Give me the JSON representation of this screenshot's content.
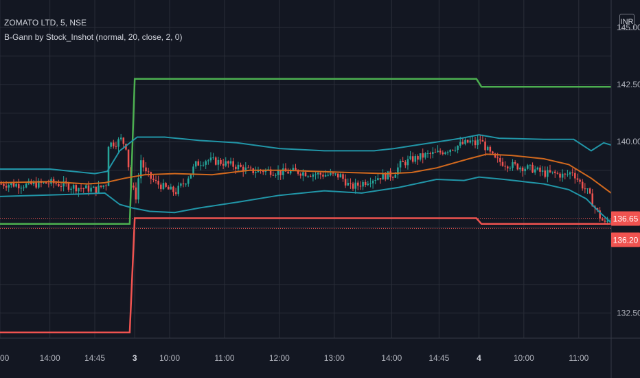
{
  "header": {
    "symbol": "ZOMATO LTD, 5, NSE",
    "indicator": "B-Gann by Stock_Inshot (normal, 20, close, 2, 0)",
    "currency": "INR"
  },
  "colors": {
    "background": "#131722",
    "grid": "#2a2e39",
    "axis_text": "#b2b5be",
    "candle_up": "#26a69a",
    "candle_down": "#ef5350",
    "upper_gann": "#4caf50",
    "lower_gann": "#f05350",
    "bollinger": "#2196a8",
    "ma": "#d2691e"
  },
  "chart_data": {
    "type": "line",
    "ylim": [
      131.4,
      146.2
    ],
    "y_ticks": [
      "132.50",
      "140.00",
      "142.50",
      "145.00"
    ],
    "x_ticks": [
      "00",
      "14:00",
      "14:45",
      "3",
      "10:00",
      "11:00",
      "12:00",
      "13:00",
      "14:00",
      "14:45",
      "4",
      "10:00",
      "11:00"
    ],
    "x_tick_bars": [
      0,
      20,
      38,
      54,
      68,
      90,
      112,
      134,
      157,
      176,
      192,
      210,
      232
    ],
    "n_bars": 245,
    "price_labels": [
      {
        "label": "136.65",
        "value": 136.65,
        "color": "#f05350"
      },
      {
        "label": "136.20",
        "value": 136.2,
        "color": "#f05350"
      }
    ],
    "series": [
      {
        "name": "upper-gann",
        "color": "#4caf50",
        "points": [
          [
            0,
            136.4
          ],
          [
            52,
            136.4
          ],
          [
            54,
            142.75
          ],
          [
            191,
            142.75
          ],
          [
            193,
            142.4
          ],
          [
            245,
            142.4
          ]
        ]
      },
      {
        "name": "lower-gann",
        "color": "#f05350",
        "points": [
          [
            0,
            131.65
          ],
          [
            52,
            131.65
          ],
          [
            54,
            136.65
          ],
          [
            191,
            136.65
          ],
          [
            193,
            136.4
          ],
          [
            245,
            136.4
          ]
        ]
      },
      {
        "name": "bollinger-upper",
        "color": "#2196a8",
        "points": [
          [
            0,
            138.8
          ],
          [
            20,
            138.8
          ],
          [
            38,
            138.6
          ],
          [
            43,
            138.7
          ],
          [
            48,
            139.6
          ],
          [
            55,
            140.2
          ],
          [
            66,
            140.2
          ],
          [
            80,
            140.05
          ],
          [
            95,
            139.95
          ],
          [
            112,
            139.7
          ],
          [
            130,
            139.6
          ],
          [
            150,
            139.6
          ],
          [
            158,
            139.7
          ],
          [
            170,
            139.9
          ],
          [
            185,
            140.15
          ],
          [
            192,
            140.3
          ],
          [
            200,
            140.15
          ],
          [
            218,
            140.1
          ],
          [
            230,
            140.1
          ],
          [
            237,
            139.6
          ],
          [
            242,
            139.95
          ],
          [
            245,
            139.85
          ]
        ]
      },
      {
        "name": "bollinger-lower",
        "color": "#2196a8",
        "points": [
          [
            0,
            137.6
          ],
          [
            15,
            137.65
          ],
          [
            30,
            137.7
          ],
          [
            42,
            137.75
          ],
          [
            48,
            137.25
          ],
          [
            53,
            137.1
          ],
          [
            60,
            136.95
          ],
          [
            70,
            136.9
          ],
          [
            80,
            137.1
          ],
          [
            95,
            137.35
          ],
          [
            112,
            137.65
          ],
          [
            130,
            137.85
          ],
          [
            145,
            137.75
          ],
          [
            160,
            138.0
          ],
          [
            175,
            138.35
          ],
          [
            186,
            138.3
          ],
          [
            192,
            138.45
          ],
          [
            202,
            138.35
          ],
          [
            218,
            138.15
          ],
          [
            228,
            137.9
          ],
          [
            235,
            137.5
          ],
          [
            240,
            136.95
          ],
          [
            245,
            136.45
          ]
        ]
      },
      {
        "name": "moving-average",
        "color": "#d2691e",
        "points": [
          [
            0,
            138.2
          ],
          [
            20,
            138.25
          ],
          [
            35,
            138.15
          ],
          [
            42,
            138.2
          ],
          [
            50,
            138.4
          ],
          [
            58,
            138.55
          ],
          [
            70,
            138.6
          ],
          [
            85,
            138.55
          ],
          [
            100,
            138.75
          ],
          [
            115,
            138.75
          ],
          [
            125,
            138.7
          ],
          [
            140,
            138.65
          ],
          [
            155,
            138.6
          ],
          [
            165,
            138.65
          ],
          [
            175,
            138.85
          ],
          [
            188,
            139.25
          ],
          [
            195,
            139.45
          ],
          [
            205,
            139.4
          ],
          [
            218,
            139.25
          ],
          [
            228,
            139.0
          ],
          [
            237,
            138.4
          ],
          [
            245,
            137.75
          ]
        ]
      }
    ],
    "candles_close_path": [
      [
        0,
        138.15
      ],
      [
        10,
        138.1
      ],
      [
        20,
        138.2
      ],
      [
        30,
        138.0
      ],
      [
        38,
        137.9
      ],
      [
        42,
        138.15
      ],
      [
        43,
        139.9
      ],
      [
        46,
        139.95
      ],
      [
        48,
        140.1
      ],
      [
        50,
        139.8
      ],
      [
        52,
        138.1
      ],
      [
        54,
        137.6
      ],
      [
        56,
        139.2
      ],
      [
        58,
        138.6
      ],
      [
        62,
        138.2
      ],
      [
        67,
        137.9
      ],
      [
        70,
        137.8
      ],
      [
        74,
        138.3
      ],
      [
        78,
        139.0
      ],
      [
        82,
        139.2
      ],
      [
        88,
        139.1
      ],
      [
        95,
        138.9
      ],
      [
        100,
        138.7
      ],
      [
        106,
        138.75
      ],
      [
        112,
        138.65
      ],
      [
        118,
        138.7
      ],
      [
        124,
        138.6
      ],
      [
        130,
        138.55
      ],
      [
        136,
        138.5
      ],
      [
        140,
        138.0
      ],
      [
        143,
        138.1
      ],
      [
        148,
        138.35
      ],
      [
        153,
        138.5
      ],
      [
        157,
        138.55
      ],
      [
        160,
        139.0
      ],
      [
        164,
        139.2
      ],
      [
        170,
        139.4
      ],
      [
        175,
        139.5
      ],
      [
        180,
        139.7
      ],
      [
        185,
        139.9
      ],
      [
        188,
        140.0
      ],
      [
        190,
        139.9
      ],
      [
        192,
        140.1
      ],
      [
        195,
        139.6
      ],
      [
        198,
        139.2
      ],
      [
        203,
        139.0
      ],
      [
        208,
        138.9
      ],
      [
        213,
        138.8
      ],
      [
        218,
        138.6
      ],
      [
        222,
        138.6
      ],
      [
        226,
        138.5
      ],
      [
        229,
        138.7
      ],
      [
        232,
        138.2
      ],
      [
        235,
        137.8
      ],
      [
        238,
        137.1
      ],
      [
        240,
        136.7
      ],
      [
        242,
        136.4
      ],
      [
        244,
        136.65
      ]
    ]
  }
}
